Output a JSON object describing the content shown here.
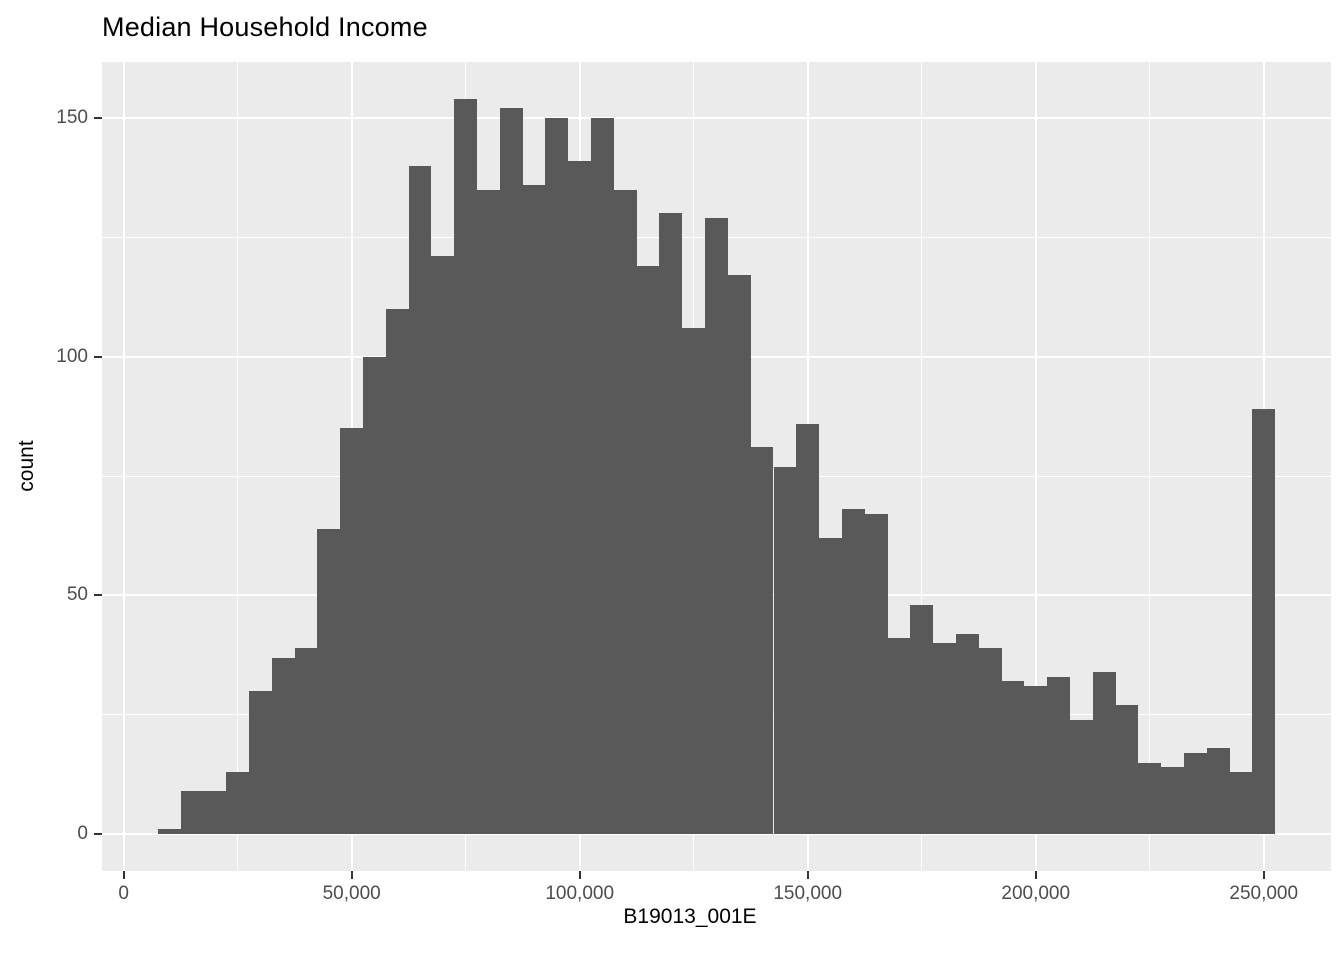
{
  "title": "Median Household Income",
  "chart_data": {
    "type": "bar",
    "subtype": "histogram",
    "title": "Median Household Income",
    "xlabel": "B19013_001E",
    "ylabel": "count",
    "legend_position": "none",
    "grid": "on",
    "bar_color": "#595959",
    "panel_color": "#EBEBEB",
    "gridline_color": "#FFFFFF",
    "tick_label_color": "#4D4D4D",
    "tick_mark_color": "#333333",
    "bin_width": 5000,
    "bin_centers": [
      10000,
      15000,
      20000,
      25000,
      30000,
      35000,
      40000,
      45000,
      50000,
      55000,
      60000,
      65000,
      70000,
      75000,
      80000,
      85000,
      90000,
      95000,
      100000,
      105000,
      110000,
      115000,
      120000,
      125000,
      130000,
      135000,
      140000,
      145000,
      150000,
      155000,
      160000,
      165000,
      170000,
      175000,
      180000,
      185000,
      190000,
      195000,
      200000,
      205000,
      210000,
      215000,
      220000,
      225000,
      230000,
      235000,
      240000,
      245000,
      250000
    ],
    "counts": [
      1,
      9,
      9,
      13,
      30,
      37,
      39,
      64,
      85,
      100,
      110,
      140,
      121,
      154,
      135,
      152,
      136,
      150,
      141,
      150,
      135,
      119,
      130,
      106,
      129,
      117,
      81,
      77,
      86,
      62,
      68,
      67,
      41,
      48,
      40,
      42,
      39,
      32,
      31,
      33,
      24,
      34,
      27,
      15,
      14,
      17,
      18,
      13,
      89
    ],
    "xlim": [
      -4750,
      264750
    ],
    "ylim": [
      -7.7,
      161.7
    ],
    "x_ticks": [
      {
        "value": 0,
        "label": "0"
      },
      {
        "value": 50000,
        "label": "50,000"
      },
      {
        "value": 100000,
        "label": "100,000"
      },
      {
        "value": 150000,
        "label": "150,000"
      },
      {
        "value": 200000,
        "label": "200,000"
      },
      {
        "value": 250000,
        "label": "250,000"
      }
    ],
    "y_ticks": [
      {
        "value": 0,
        "label": "0"
      },
      {
        "value": 50,
        "label": "50"
      },
      {
        "value": 100,
        "label": "100"
      },
      {
        "value": 150,
        "label": "150"
      }
    ],
    "x_minor_gridlines": [
      25000,
      75000,
      125000,
      175000,
      225000
    ],
    "y_minor_gridlines": [
      25,
      75,
      125
    ]
  }
}
